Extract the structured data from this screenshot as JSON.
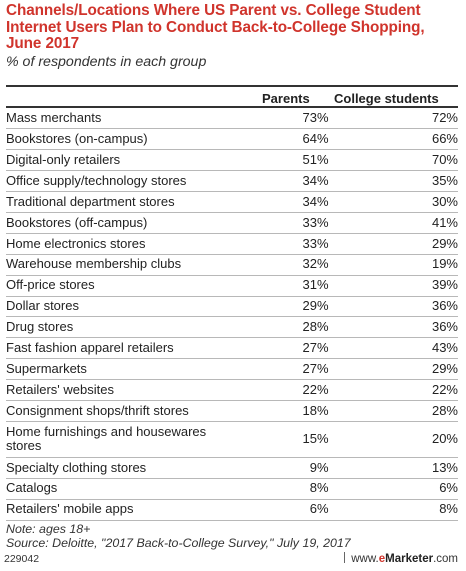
{
  "chart_data": {
    "type": "table",
    "title": "Channels/Locations Where US Parent vs. College Student Internet Users Plan to Conduct Back-to-College Shopping, June 2017",
    "subtitle": "% of respondents in each group",
    "columns": [
      "Parents",
      "College students"
    ],
    "rows": [
      {
        "label": "Mass merchants",
        "parents": "73%",
        "students": "72%"
      },
      {
        "label": "Bookstores (on-campus)",
        "parents": "64%",
        "students": "66%"
      },
      {
        "label": "Digital-only retailers",
        "parents": "51%",
        "students": "70%"
      },
      {
        "label": "Office supply/technology stores",
        "parents": "34%",
        "students": "35%"
      },
      {
        "label": "Traditional department stores",
        "parents": "34%",
        "students": "30%"
      },
      {
        "label": "Bookstores (off-campus)",
        "parents": "33%",
        "students": "41%"
      },
      {
        "label": "Home electronics stores",
        "parents": "33%",
        "students": "29%"
      },
      {
        "label": "Warehouse membership clubs",
        "parents": "32%",
        "students": "19%"
      },
      {
        "label": "Off-price stores",
        "parents": "31%",
        "students": "39%"
      },
      {
        "label": "Dollar stores",
        "parents": "29%",
        "students": "36%"
      },
      {
        "label": "Drug stores",
        "parents": "28%",
        "students": "36%"
      },
      {
        "label": "Fast fashion apparel retailers",
        "parents": "27%",
        "students": "43%"
      },
      {
        "label": "Supermarkets",
        "parents": "27%",
        "students": "29%"
      },
      {
        "label": "Retailers' websites",
        "parents": "22%",
        "students": "22%"
      },
      {
        "label": "Consignment shops/thrift stores",
        "parents": "18%",
        "students": "28%"
      },
      {
        "label": "Home furnishings and housewares stores",
        "parents": "15%",
        "students": "20%"
      },
      {
        "label": "Specialty clothing stores",
        "parents": "9%",
        "students": "13%"
      },
      {
        "label": "Catalogs",
        "parents": "8%",
        "students": "6%"
      },
      {
        "label": "Retailers' mobile apps",
        "parents": "6%",
        "students": "8%"
      }
    ],
    "note": "Note: ages 18+",
    "source": "Source: Deloitte, \"2017 Back-to-College Survey,\" July 19, 2017"
  },
  "footer": {
    "id": "229042",
    "site": "www.",
    "brand_e": "e",
    "brand_m": "Marketer",
    "domain": ".com"
  },
  "colors": {
    "title": "#d0342c",
    "rule": "#333333",
    "row_line": "#b8b8b8"
  }
}
